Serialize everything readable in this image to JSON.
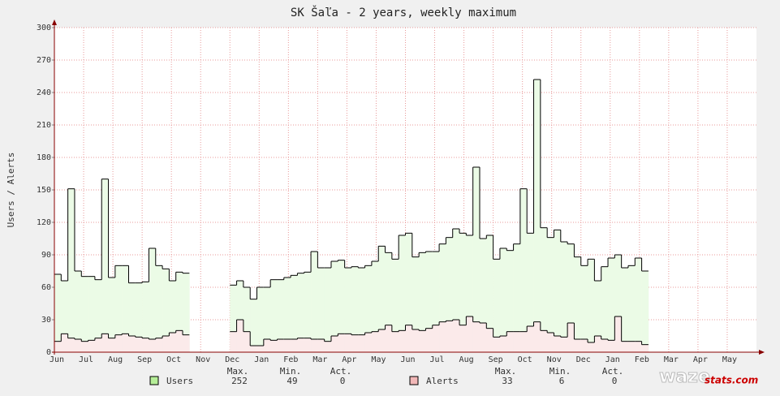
{
  "chart_data": {
    "type": "step-area",
    "title": "SK Šaľa - 2 years, weekly maximum",
    "y_label": "Users / Alerts",
    "x_labels": [
      "Jun",
      "Jul",
      "Aug",
      "Sep",
      "Oct",
      "Nov",
      "Dec",
      "Jan",
      "Feb",
      "Mar",
      "Apr",
      "May",
      "Jun",
      "Jul",
      "Aug",
      "Sep",
      "Oct",
      "Nov",
      "Dec",
      "Jan",
      "Feb",
      "Mar",
      "Apr",
      "May"
    ],
    "ylim": [
      0,
      300
    ],
    "yticks": [
      0,
      30,
      60,
      90,
      120,
      150,
      180,
      210,
      240,
      270,
      300
    ],
    "grid": true,
    "stat_labels": [
      "Max.",
      "Min.",
      "Act."
    ],
    "series": [
      {
        "name": "Users",
        "color": "#000000",
        "fill": "#ebfbe6",
        "swatch": "#b6ee98",
        "stats": [
          252,
          49,
          0
        ],
        "values": [
          72,
          66,
          151,
          75,
          70,
          70,
          67,
          160,
          69,
          80,
          80,
          64,
          64,
          65,
          96,
          80,
          77,
          66,
          74,
          73,
          null,
          null,
          null,
          null,
          null,
          null,
          62,
          66,
          60,
          49,
          60,
          60,
          67,
          67,
          69,
          71,
          73,
          74,
          93,
          78,
          78,
          84,
          85,
          78,
          79,
          78,
          80,
          84,
          98,
          92,
          86,
          108,
          110,
          88,
          92,
          93,
          93,
          100,
          106,
          114,
          110,
          108,
          171,
          105,
          108,
          86,
          96,
          94,
          100,
          151,
          110,
          252,
          115,
          106,
          113,
          102,
          100,
          88,
          80,
          86,
          66,
          79,
          87,
          90,
          78,
          80,
          87,
          75,
          null,
          null,
          null,
          null,
          null,
          null,
          null,
          null,
          null,
          null,
          null,
          null,
          null,
          null,
          null,
          null
        ]
      },
      {
        "name": "Alerts",
        "color": "#000000",
        "fill": "#fbeaea",
        "swatch": "#f2b8b8",
        "stats": [
          33,
          6,
          0
        ],
        "values": [
          10,
          17,
          13,
          12,
          10,
          11,
          13,
          17,
          13,
          16,
          17,
          15,
          14,
          13,
          12,
          13,
          15,
          18,
          20,
          16,
          null,
          null,
          null,
          null,
          null,
          null,
          19,
          30,
          19,
          6,
          6,
          12,
          11,
          12,
          12,
          12,
          13,
          13,
          12,
          12,
          10,
          15,
          17,
          17,
          16,
          16,
          18,
          19,
          21,
          25,
          19,
          20,
          25,
          21,
          20,
          22,
          25,
          28,
          29,
          30,
          25,
          33,
          28,
          27,
          22,
          14,
          15,
          19,
          19,
          19,
          24,
          28,
          20,
          18,
          15,
          14,
          27,
          12,
          12,
          9,
          15,
          12,
          11,
          33,
          10,
          10,
          10,
          7,
          null,
          null,
          null,
          null,
          null,
          null,
          null,
          null,
          null,
          null,
          null,
          null,
          null,
          null,
          null,
          null
        ]
      }
    ],
    "logo": [
      "waze",
      "stats.com"
    ]
  }
}
